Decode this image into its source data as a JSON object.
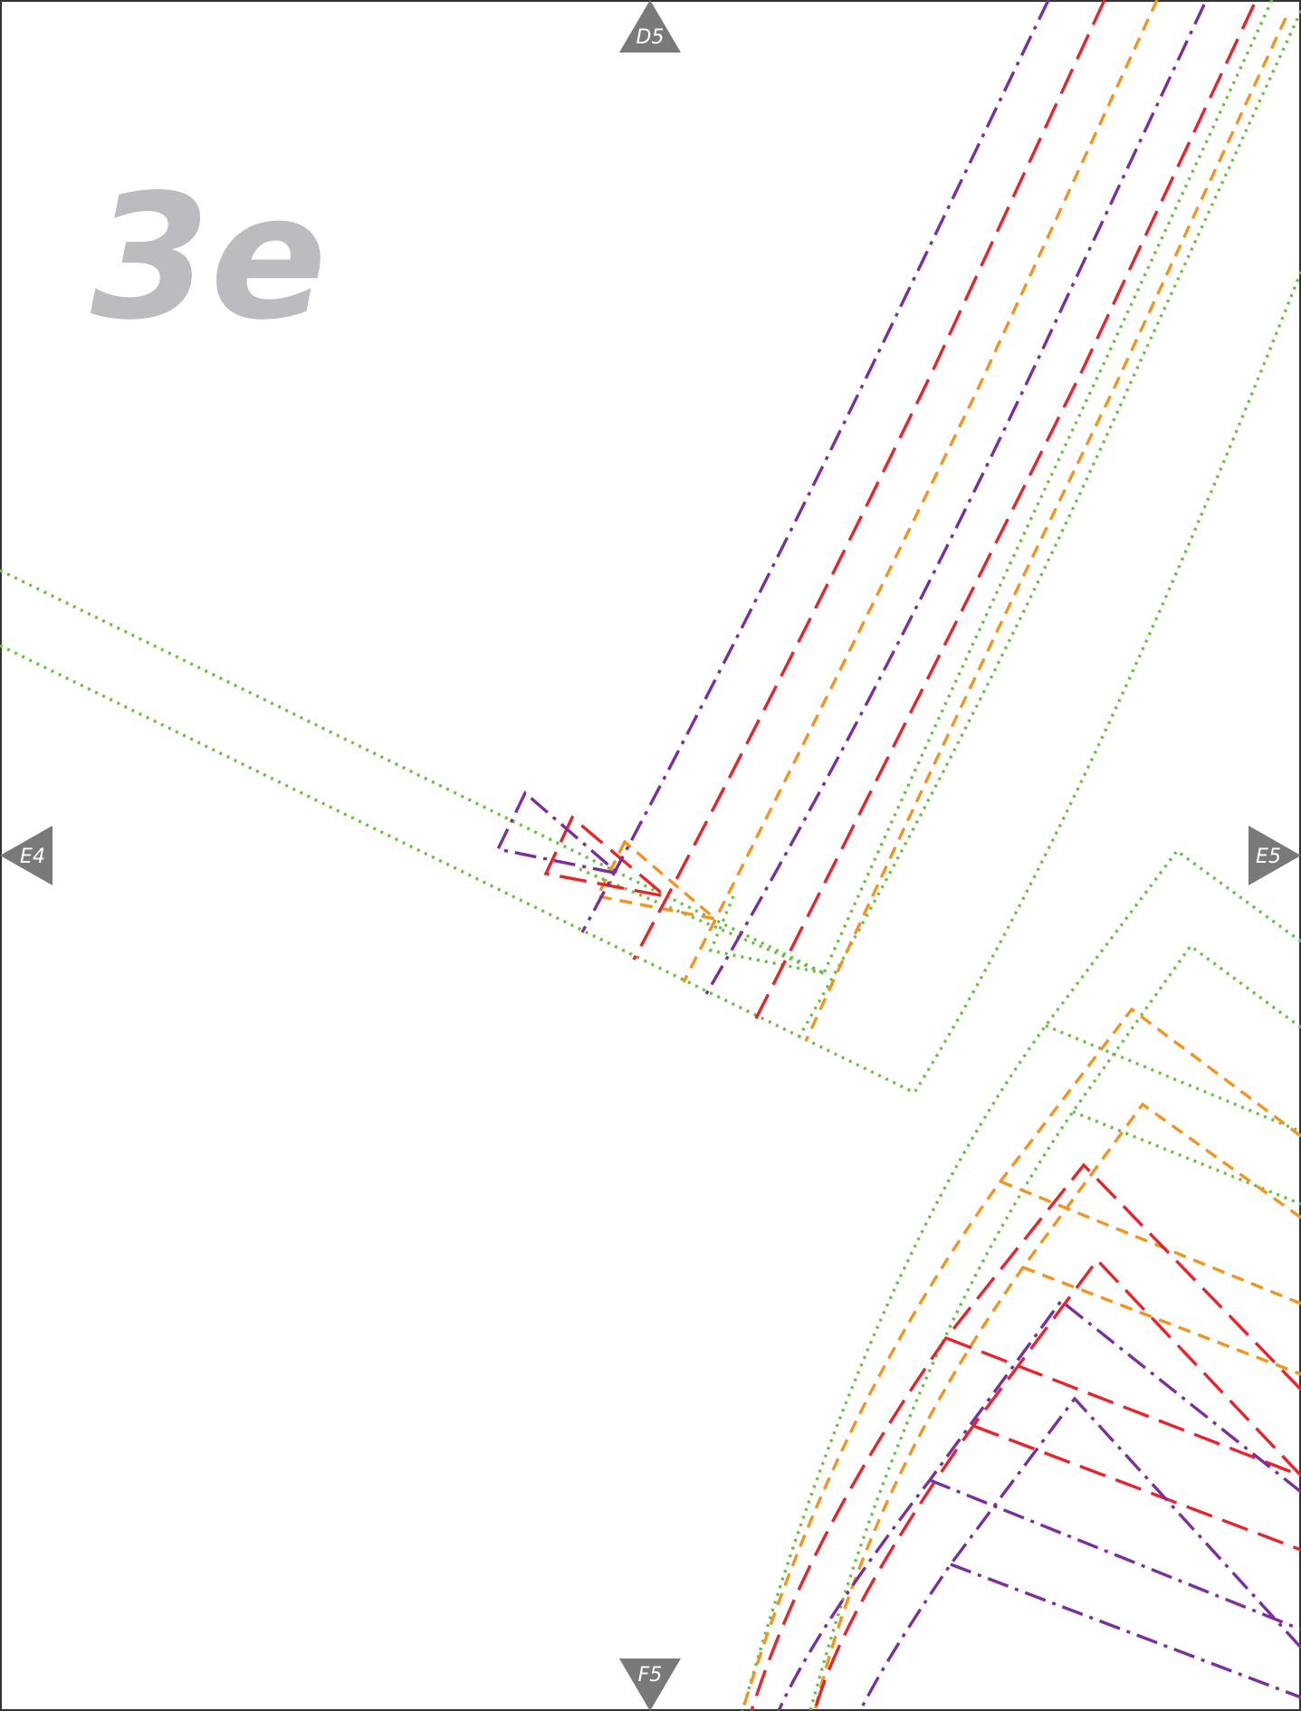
{
  "page_label": "3e",
  "markers": {
    "top": {
      "label": "D5",
      "direction": "up"
    },
    "left": {
      "label": "E4",
      "direction": "left"
    },
    "right": {
      "label": "E5",
      "direction": "right"
    },
    "bottom": {
      "label": "F5",
      "direction": "down"
    }
  },
  "colors": {
    "purple": "#7b2f9c",
    "red": "#e8232b",
    "orange": "#f29422",
    "green": "#6cbf45",
    "marker": "#7a7978",
    "page_label": "#bcbcc0",
    "frame": "#333333"
  },
  "line_styles": {
    "purple": "dash-dot",
    "red": "long-dash",
    "orange": "dash",
    "green": "dot"
  }
}
